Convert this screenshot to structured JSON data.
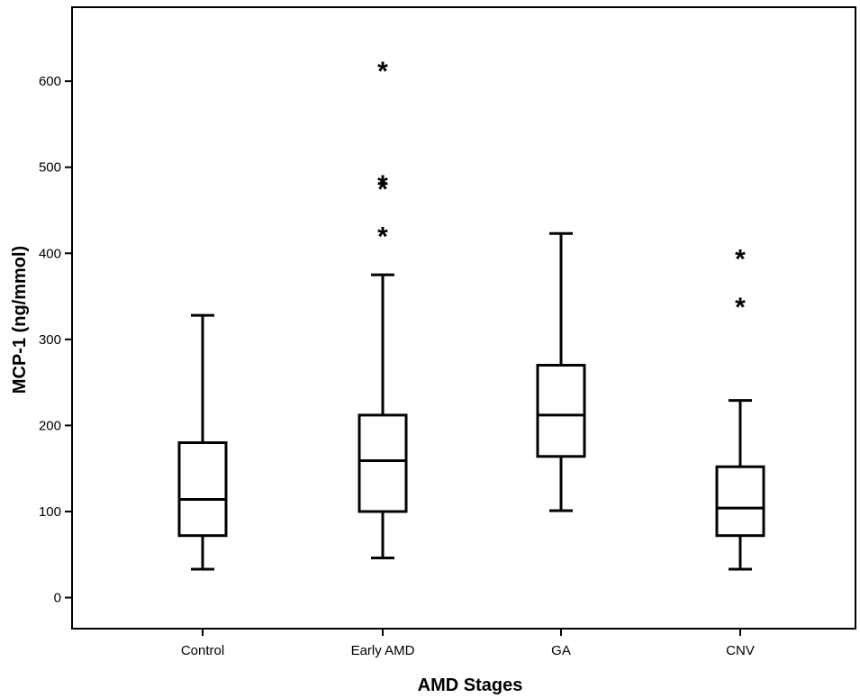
{
  "chart_data": {
    "type": "box",
    "xlabel": "AMD Stages",
    "ylabel": "MCP-1 (ng/mmol)",
    "ylim": [
      -35,
      690
    ],
    "yticks": [
      0,
      100,
      200,
      300,
      400,
      500,
      600
    ],
    "grid": false,
    "categories": [
      "Control",
      "Early AMD",
      "GA",
      "CNV"
    ],
    "boxes": [
      {
        "category": "Control",
        "min": 33,
        "q1": 72,
        "median": 114,
        "q3": 180,
        "max": 328,
        "outliers": []
      },
      {
        "category": "Early AMD",
        "min": 46,
        "q1": 100,
        "median": 159,
        "q3": 212,
        "max": 375,
        "outliers": [
          427,
          482,
          487,
          619
        ]
      },
      {
        "category": "GA",
        "min": 101,
        "q1": 164,
        "median": 212,
        "q3": 270,
        "max": 423,
        "outliers": []
      },
      {
        "category": "CNV",
        "min": 33,
        "q1": 72,
        "median": 104,
        "q3": 152,
        "max": 229,
        "outliers": [
          345,
          401
        ]
      }
    ],
    "outlier_marker": "*"
  }
}
